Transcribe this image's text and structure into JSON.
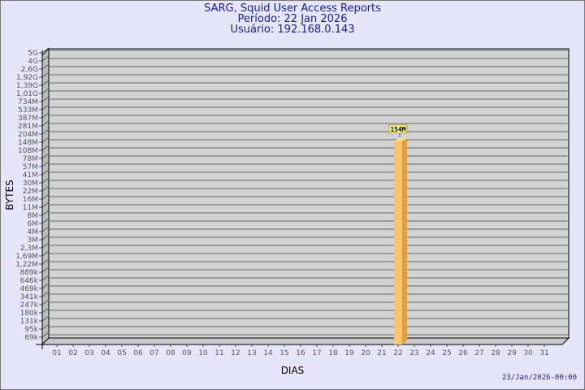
{
  "header": {
    "title": "SARG, Squid User Access Reports",
    "period": "Período: 22 Jan 2026",
    "user": "Usuário: 192.168.0.143"
  },
  "footer": {
    "timestamp": "23/Jan/2026-00:00"
  },
  "colors": {
    "background": "#e6e6fa",
    "plot": "#d3d3d3",
    "bar": "#ffc466",
    "bar_side": "#d9a04a",
    "title": "#1a1aa0"
  },
  "chart_data": {
    "type": "bar",
    "xlabel": "DIAS",
    "ylabel": "BYTES",
    "y_scale": "log",
    "y_ticks": [
      "5G",
      "4G",
      "2,6G",
      "1,92G",
      "1,39G",
      "1,01G",
      "734M",
      "533M",
      "387M",
      "281M",
      "204M",
      "148M",
      "108M",
      "78M",
      "57M",
      "41M",
      "30M",
      "22M",
      "16M",
      "11M",
      "8M",
      "6M",
      "4M",
      "3M",
      "2,3M",
      "1,69M",
      "1,22M",
      "889k",
      "646k",
      "469k",
      "341k",
      "247k",
      "180k",
      "131k",
      "95k",
      "69k"
    ],
    "categories": [
      "01",
      "02",
      "03",
      "04",
      "05",
      "06",
      "07",
      "08",
      "09",
      "10",
      "11",
      "12",
      "13",
      "14",
      "15",
      "16",
      "17",
      "18",
      "19",
      "20",
      "21",
      "22",
      "23",
      "24",
      "25",
      "26",
      "27",
      "28",
      "29",
      "30",
      "31"
    ],
    "bars": [
      {
        "category": "22",
        "value_label": "154M",
        "value_bytes": 154000000
      }
    ],
    "grid": true
  }
}
